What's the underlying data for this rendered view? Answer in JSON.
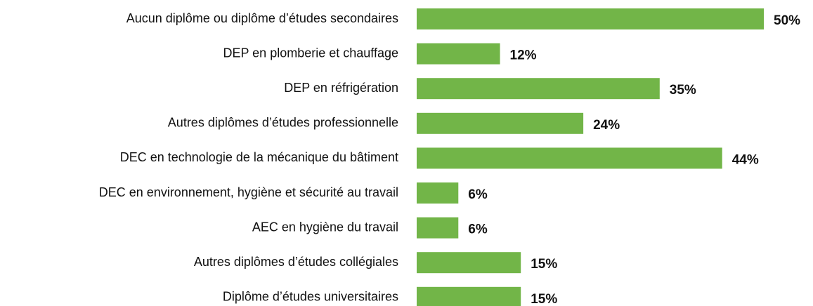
{
  "chart_data": {
    "type": "hbar",
    "categories": [
      "Aucun diplôme ou diplôme d’études secondaires",
      "DEP en plomberie et chauffage",
      "DEP en réfrigération",
      "Autres diplômes d’études professionnelle",
      "DEC en technologie de la mécanique du bâtiment",
      "DEC en environnement, hygiène et sécurité au travail",
      "AEC en hygiène du travail",
      "Autres diplômes d’études collégiales",
      "Diplôme d’études universitaires"
    ],
    "values": [
      50,
      12,
      35,
      24,
      44,
      6,
      6,
      15,
      15
    ],
    "value_labels": [
      "50%",
      "12%",
      "35%",
      "24%",
      "44%",
      "6%",
      "6%",
      "15%",
      "15%"
    ],
    "color": "#72b548"
  }
}
